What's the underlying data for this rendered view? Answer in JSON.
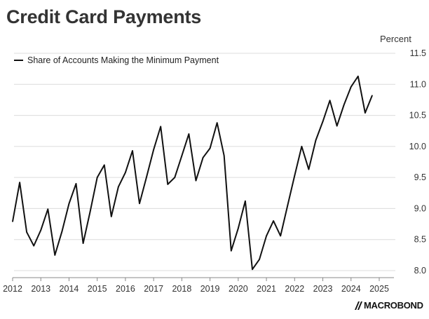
{
  "chart_data": {
    "type": "line",
    "title": "Credit Card Payments",
    "unit_label": "Percent",
    "series": [
      {
        "name": "Share of Accounts Making the Minimum Payment",
        "color": "#111111",
        "points": [
          [
            2012.0,
            8.79
          ],
          [
            2012.25,
            9.42
          ],
          [
            2012.5,
            8.62
          ],
          [
            2012.75,
            8.4
          ],
          [
            2013.0,
            8.65
          ],
          [
            2013.25,
            8.99
          ],
          [
            2013.5,
            8.25
          ],
          [
            2013.75,
            8.63
          ],
          [
            2014.0,
            9.08
          ],
          [
            2014.25,
            9.4
          ],
          [
            2014.5,
            8.44
          ],
          [
            2014.75,
            8.95
          ],
          [
            2015.0,
            9.5
          ],
          [
            2015.25,
            9.7
          ],
          [
            2015.5,
            8.87
          ],
          [
            2015.75,
            9.35
          ],
          [
            2016.0,
            9.58
          ],
          [
            2016.25,
            9.93
          ],
          [
            2016.5,
            9.08
          ],
          [
            2016.75,
            9.51
          ],
          [
            2017.0,
            9.95
          ],
          [
            2017.25,
            10.32
          ],
          [
            2017.5,
            9.39
          ],
          [
            2017.75,
            9.5
          ],
          [
            2018.0,
            9.85
          ],
          [
            2018.25,
            10.2
          ],
          [
            2018.5,
            9.45
          ],
          [
            2018.75,
            9.82
          ],
          [
            2019.0,
            9.97
          ],
          [
            2019.25,
            10.38
          ],
          [
            2019.5,
            9.85
          ],
          [
            2019.75,
            8.32
          ],
          [
            2020.0,
            8.68
          ],
          [
            2020.25,
            9.12
          ],
          [
            2020.5,
            8.02
          ],
          [
            2020.75,
            8.18
          ],
          [
            2021.0,
            8.56
          ],
          [
            2021.25,
            8.8
          ],
          [
            2021.5,
            8.56
          ],
          [
            2021.75,
            9.05
          ],
          [
            2022.0,
            9.53
          ],
          [
            2022.25,
            10.0
          ],
          [
            2022.5,
            9.63
          ],
          [
            2022.75,
            10.1
          ],
          [
            2023.0,
            10.4
          ],
          [
            2023.25,
            10.74
          ],
          [
            2023.5,
            10.33
          ],
          [
            2023.75,
            10.67
          ],
          [
            2024.0,
            10.96
          ],
          [
            2024.25,
            11.13
          ],
          [
            2024.5,
            10.54
          ],
          [
            2024.75,
            10.82
          ]
        ]
      }
    ],
    "y_range": [
      8.0,
      11.5
    ],
    "y_ticks": [
      "11.5",
      "11.0",
      "10.5",
      "10.0",
      "9.5",
      "9.0",
      "8.5",
      "8.0"
    ],
    "x_ticks": [
      "2012",
      "2013",
      "2014",
      "2015",
      "2016",
      "2017",
      "2018",
      "2019",
      "2020",
      "2021",
      "2022",
      "2023",
      "2024",
      "2025"
    ],
    "y_axis_position": "right",
    "grid": "horizontal",
    "legend_position": "top-left"
  },
  "brand": {
    "name": "MACROBOND"
  }
}
